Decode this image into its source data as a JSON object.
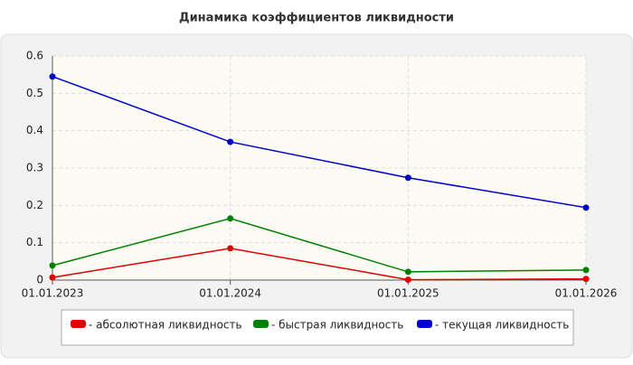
{
  "chart_data": {
    "type": "line",
    "title": "Динамика коэффициентов ликвидности",
    "categories": [
      "01.01.2023",
      "01.01.2024",
      "01.01.2025",
      "01.01.2026"
    ],
    "series": [
      {
        "name": "- абсолютная ликвидность",
        "color": "#e00000",
        "values": [
          0.007,
          0.085,
          0.001,
          0.003
        ]
      },
      {
        "name": "- быстрая ликвидность",
        "color": "#008000",
        "values": [
          0.039,
          0.165,
          0.022,
          0.027
        ]
      },
      {
        "name": "- текущая ликвидность",
        "color": "#0000cc",
        "values": [
          0.545,
          0.37,
          0.274,
          0.194
        ]
      }
    ],
    "ylim": [
      0,
      0.6
    ],
    "yticks": [
      0,
      0.1,
      0.2,
      0.3,
      0.4,
      0.5,
      0.6
    ],
    "grid": true,
    "legend": "bottom"
  }
}
